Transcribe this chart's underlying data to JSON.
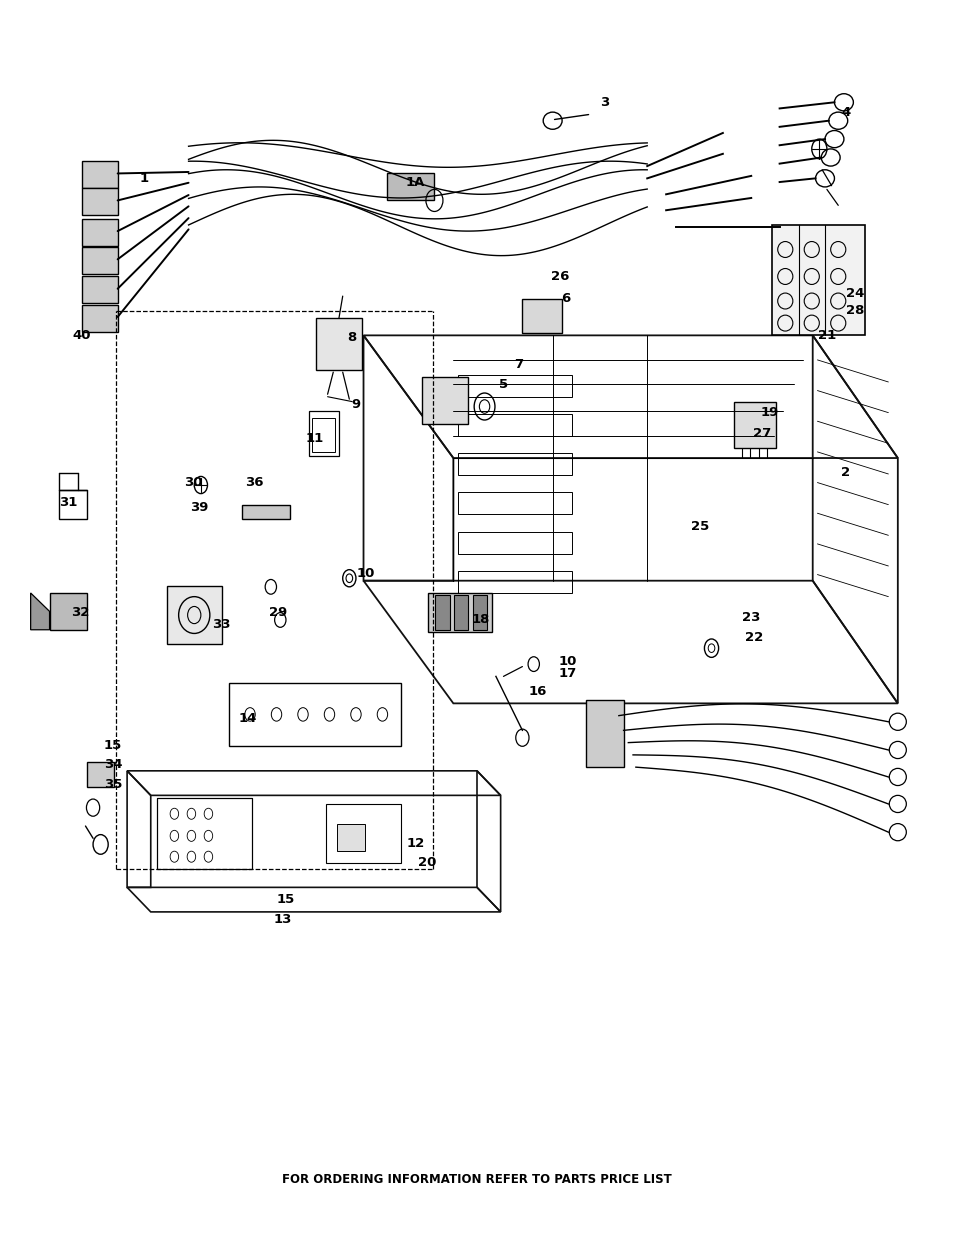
{
  "figure_width": 9.54,
  "figure_height": 12.35,
  "dpi": 100,
  "background_color": "#ffffff",
  "footer_text": "FOR ORDERING INFORMATION REFER TO PARTS PRICE LIST",
  "footer_fontsize": 8.5,
  "footer_fontweight": "bold"
}
